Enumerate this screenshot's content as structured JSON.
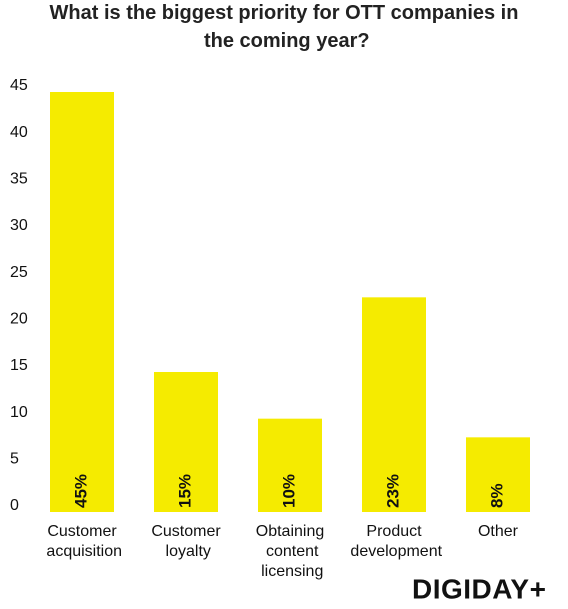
{
  "chart_data": {
    "type": "bar",
    "title": "What is the biggest priority for OTT companies in the coming year?",
    "categories": [
      "Customer acquisition",
      "Customer loyalty",
      "Obtaining content licensing",
      "Product development",
      "Other"
    ],
    "values": [
      45,
      15,
      10,
      23,
      8
    ],
    "value_labels": [
      "45%",
      "15%",
      "10%",
      "23%",
      "8%"
    ],
    "color": "#f5eb00",
    "ylim": [
      0,
      45
    ],
    "yticks": [
      0,
      5,
      10,
      15,
      20,
      25,
      30,
      35,
      40,
      45
    ],
    "grid": false
  },
  "logo": "DIGIDAY+"
}
